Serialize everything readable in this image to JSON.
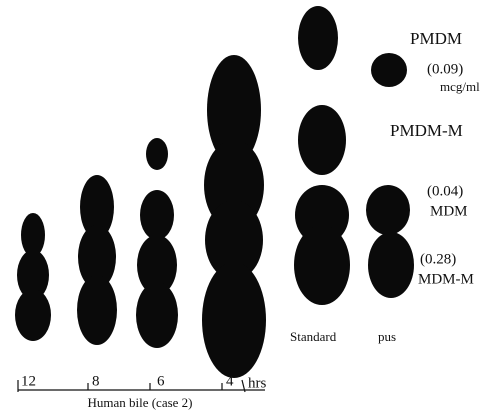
{
  "labels": {
    "pmdm": "PMDM",
    "conc1": "(0.09)",
    "unit": "mcg/ml",
    "pmdmm": "PMDM-M",
    "conc2": "(0.04)",
    "mdm": "MDM",
    "conc3": "(0.28)",
    "mdmm": "MDM-M",
    "standard": "Standard",
    "pus": "pus"
  },
  "lanes": [
    "12",
    "8",
    "6",
    "4"
  ],
  "hours_unit": "hrs",
  "caption": "Human bile (case 2)"
}
